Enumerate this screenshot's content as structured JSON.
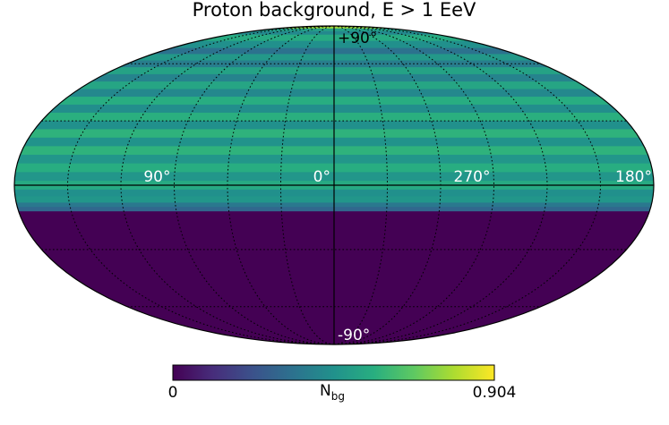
{
  "chart_data": {
    "type": "heatmap",
    "projection": "mollweide",
    "title": "Proton background, E > 1 EeV",
    "colormap": "viridis",
    "vmin": 0,
    "vmax": 0.904,
    "colorbar": {
      "label_main": "N",
      "label_sub": "bg",
      "min_label": "0",
      "max_label": "0.904"
    },
    "longitude_labels": [
      {
        "text": "90°",
        "lon": 90
      },
      {
        "text": "0°",
        "lon": 0
      },
      {
        "text": "270°",
        "lon": 270
      },
      {
        "text": "180°",
        "lon": 180
      }
    ],
    "latitude_labels": [
      {
        "text": "+90°",
        "lat": 90
      },
      {
        "text": "-90°",
        "lat": -90
      }
    ],
    "graticule": {
      "lon_step_deg": 30,
      "lat_step_deg": 30,
      "style": "dotted"
    },
    "latitude_profile": [
      {
        "lat": 90,
        "value": 0.9
      },
      {
        "lat": 88,
        "value": 0.75
      },
      {
        "lat": 86,
        "value": 0.5
      },
      {
        "lat": 83,
        "value": 0.42
      },
      {
        "lat": 80,
        "value": 0.55
      },
      {
        "lat": 75,
        "value": 0.45
      },
      {
        "lat": 70,
        "value": 0.34
      },
      {
        "lat": 66,
        "value": 0.48
      },
      {
        "lat": 62,
        "value": 0.38
      },
      {
        "lat": 58,
        "value": 0.52
      },
      {
        "lat": 54,
        "value": 0.4
      },
      {
        "lat": 50,
        "value": 0.53
      },
      {
        "lat": 46,
        "value": 0.42
      },
      {
        "lat": 42,
        "value": 0.56
      },
      {
        "lat": 38,
        "value": 0.44
      },
      {
        "lat": 34,
        "value": 0.57
      },
      {
        "lat": 30,
        "value": 0.45
      },
      {
        "lat": 26,
        "value": 0.58
      },
      {
        "lat": 22,
        "value": 0.46
      },
      {
        "lat": 18,
        "value": 0.58
      },
      {
        "lat": 14,
        "value": 0.47
      },
      {
        "lat": 10,
        "value": 0.56
      },
      {
        "lat": 6,
        "value": 0.47
      },
      {
        "lat": 2,
        "value": 0.55
      },
      {
        "lat": -2,
        "value": 0.45
      },
      {
        "lat": -5,
        "value": 0.47
      },
      {
        "lat": -8,
        "value": 0.36
      },
      {
        "lat": -10,
        "value": 0.3
      },
      {
        "lat": -12,
        "value": 0.0
      },
      {
        "lat": -90,
        "value": 0.0
      }
    ]
  }
}
